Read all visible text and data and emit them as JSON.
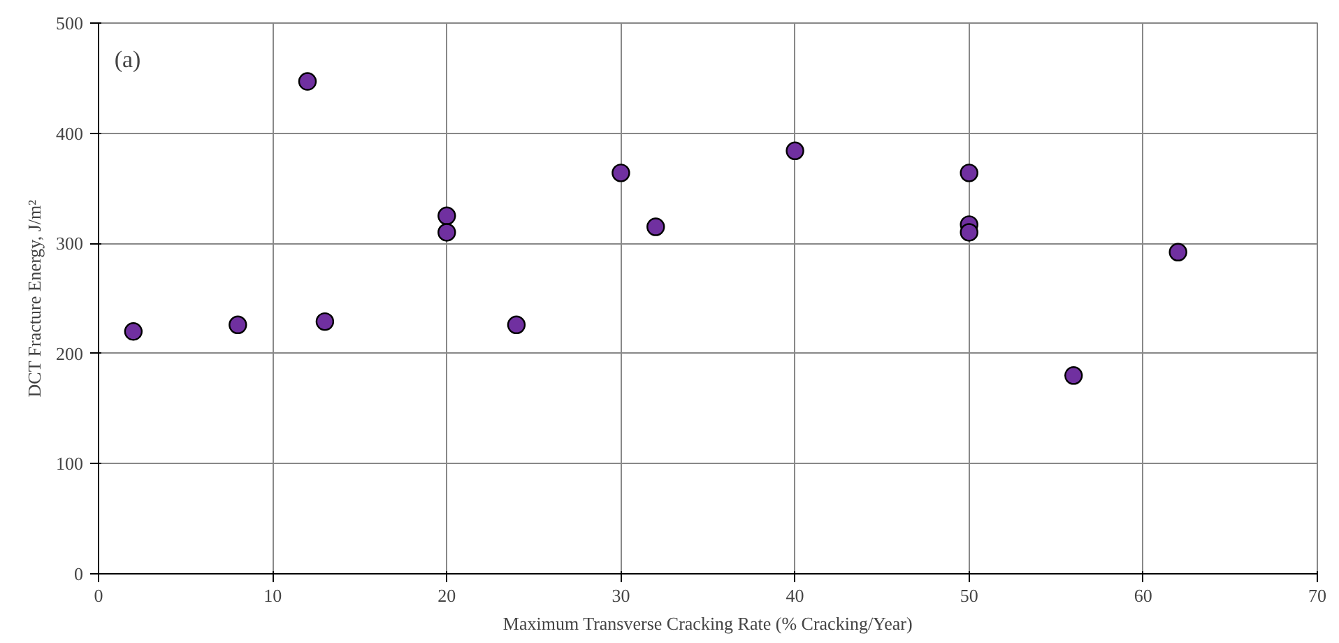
{
  "chart_data": {
    "type": "scatter",
    "xlabel": "Maximum Transverse Cracking Rate (% Cracking/Year)",
    "ylabel": "DCT Fracture Energy, J/m²",
    "annotations": [
      "(a)"
    ],
    "x": [
      2,
      8,
      12,
      13,
      20,
      20,
      24,
      30,
      32,
      40,
      50,
      50,
      50,
      56,
      62
    ],
    "series": [
      {
        "color": "#7030a0",
        "values": [
          220,
          226,
          447,
          229,
          325,
          310,
          226,
          364,
          315,
          384,
          364,
          317,
          310,
          180,
          292
        ]
      }
    ],
    "xlim": [
      0,
      70
    ],
    "ylim": [
      0,
      500
    ],
    "xticks": [
      0,
      10,
      20,
      30,
      40,
      50,
      60,
      70
    ],
    "yticks": [
      0,
      100,
      200,
      300,
      400,
      500
    ],
    "grid": true,
    "marker": "circle"
  }
}
